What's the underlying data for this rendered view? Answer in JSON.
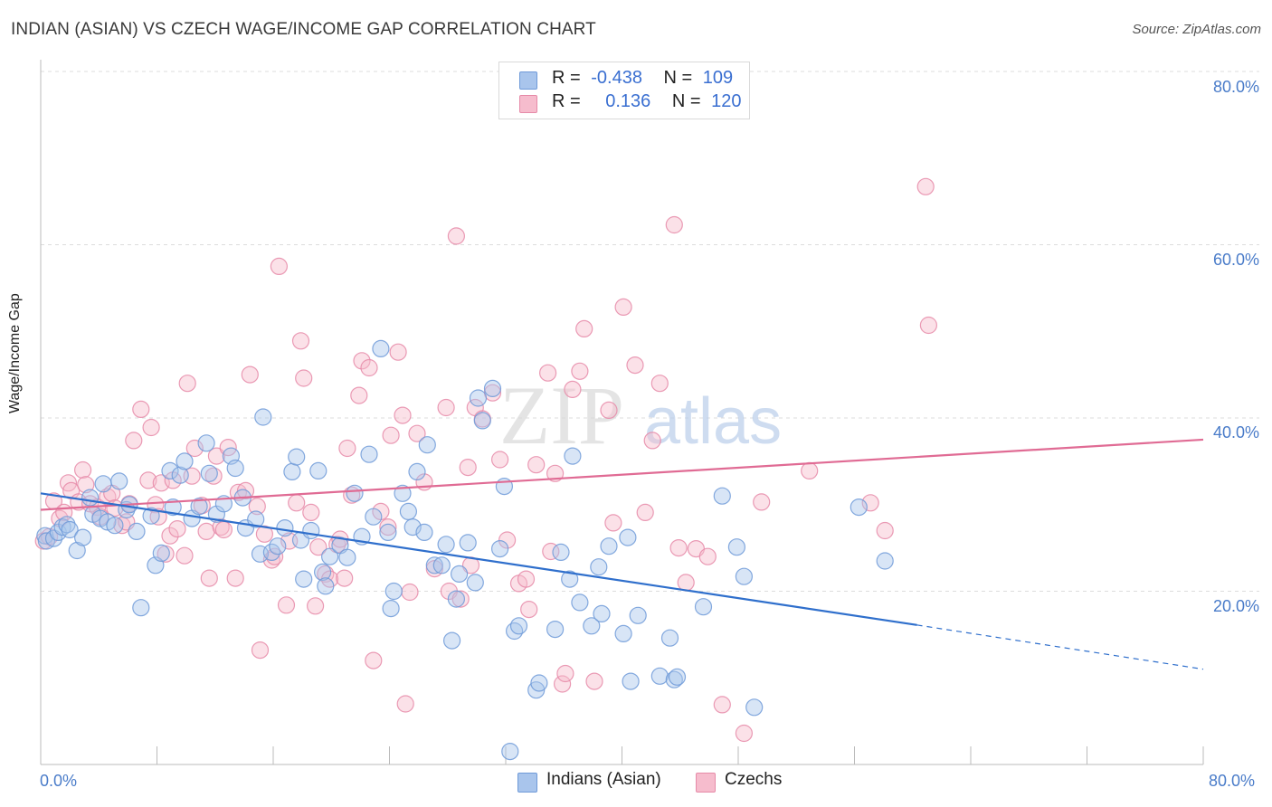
{
  "title": "INDIAN (ASIAN) VS CZECH WAGE/INCOME GAP CORRELATION CHART",
  "source": "Source: ZipAtlas.com",
  "watermark": {
    "zip": "ZIP",
    "atlas": "atlas"
  },
  "legend_top": {
    "rows": [
      {
        "r_label": "R =",
        "r_value": "-0.438",
        "n_label": "N =",
        "n_value": "109"
      },
      {
        "r_label": "R =",
        "r_value": "0.136",
        "n_label": "N =",
        "n_value": "120"
      }
    ]
  },
  "legend_bottom": {
    "items": [
      "Indians (Asian)",
      "Czechs"
    ]
  },
  "colors": {
    "blue_fill": "#a9c5ec",
    "blue_stroke": "#6f9ad8",
    "blue_line": "#2f6fcc",
    "pink_fill": "#f6bccd",
    "pink_stroke": "#e68aa8",
    "pink_line": "#e06b94",
    "tick_text": "#4a7cc9",
    "grid": "#dddddd"
  },
  "chart_data": {
    "type": "scatter",
    "title": "INDIAN (ASIAN) VS CZECH WAGE/INCOME GAP CORRELATION CHART",
    "xlabel": "",
    "ylabel": "Wage/Income Gap",
    "xlim": [
      0,
      80
    ],
    "ylim": [
      0,
      80
    ],
    "x_tick_labels": [
      "0.0%",
      "80.0%"
    ],
    "y_tick_labels": [
      "20.0%",
      "40.0%",
      "60.0%",
      "80.0%"
    ],
    "y_ticks": [
      20,
      40,
      60,
      80
    ],
    "grid": true,
    "legend_placement": "top-center",
    "series": [
      {
        "name": "Indians (Asian)",
        "r": -0.438,
        "n": 109,
        "trend": {
          "x": [
            0,
            60.3
          ],
          "y": [
            31.3,
            16.1
          ],
          "dashed_to": [
            80,
            11.0
          ]
        },
        "points": [
          [
            0.3,
            26.4
          ],
          [
            0.4,
            25.8
          ],
          [
            0.9,
            26.1
          ],
          [
            1.2,
            26.8
          ],
          [
            1.5,
            27.4
          ],
          [
            1.8,
            27.7
          ],
          [
            2.0,
            27.1
          ],
          [
            2.5,
            24.7
          ],
          [
            2.9,
            26.2
          ],
          [
            3.4,
            30.8
          ],
          [
            3.6,
            28.9
          ],
          [
            4.1,
            28.4
          ],
          [
            4.3,
            32.4
          ],
          [
            4.6,
            28.0
          ],
          [
            5.1,
            27.6
          ],
          [
            5.4,
            32.7
          ],
          [
            5.9,
            29.4
          ],
          [
            6.1,
            30.0
          ],
          [
            6.6,
            26.9
          ],
          [
            6.9,
            18.1
          ],
          [
            7.6,
            28.7
          ],
          [
            7.9,
            23.0
          ],
          [
            8.3,
            24.4
          ],
          [
            8.9,
            33.9
          ],
          [
            9.1,
            29.7
          ],
          [
            9.6,
            33.4
          ],
          [
            9.9,
            35.0
          ],
          [
            10.4,
            28.4
          ],
          [
            10.9,
            29.8
          ],
          [
            11.4,
            37.1
          ],
          [
            11.6,
            33.6
          ],
          [
            12.1,
            28.9
          ],
          [
            12.6,
            30.1
          ],
          [
            13.1,
            35.6
          ],
          [
            13.4,
            34.2
          ],
          [
            13.9,
            30.8
          ],
          [
            14.1,
            27.3
          ],
          [
            14.8,
            28.3
          ],
          [
            15.1,
            24.3
          ],
          [
            15.3,
            40.1
          ],
          [
            15.9,
            24.5
          ],
          [
            16.3,
            25.2
          ],
          [
            16.8,
            27.3
          ],
          [
            17.3,
            33.8
          ],
          [
            17.6,
            35.5
          ],
          [
            17.9,
            25.9
          ],
          [
            18.1,
            21.4
          ],
          [
            18.6,
            27.0
          ],
          [
            19.1,
            33.9
          ],
          [
            19.4,
            22.2
          ],
          [
            19.6,
            20.6
          ],
          [
            19.9,
            24.0
          ],
          [
            20.6,
            25.3
          ],
          [
            21.1,
            23.9
          ],
          [
            21.6,
            31.3
          ],
          [
            22.1,
            26.3
          ],
          [
            22.6,
            35.8
          ],
          [
            22.9,
            28.6
          ],
          [
            23.4,
            48.0
          ],
          [
            23.9,
            26.8
          ],
          [
            24.3,
            20.0
          ],
          [
            24.1,
            18.0
          ],
          [
            24.9,
            31.3
          ],
          [
            25.3,
            29.2
          ],
          [
            25.6,
            27.4
          ],
          [
            25.9,
            33.8
          ],
          [
            26.4,
            26.8
          ],
          [
            26.6,
            36.9
          ],
          [
            27.1,
            23.0
          ],
          [
            27.6,
            23.0
          ],
          [
            27.9,
            25.4
          ],
          [
            28.3,
            14.3
          ],
          [
            28.6,
            19.1
          ],
          [
            28.8,
            22.0
          ],
          [
            29.4,
            25.6
          ],
          [
            29.9,
            21.0
          ],
          [
            30.1,
            42.3
          ],
          [
            30.4,
            39.7
          ],
          [
            31.1,
            43.4
          ],
          [
            31.6,
            24.9
          ],
          [
            31.9,
            32.1
          ],
          [
            32.3,
            1.5
          ],
          [
            32.6,
            15.4
          ],
          [
            32.9,
            16.0
          ],
          [
            34.1,
            8.6
          ],
          [
            34.3,
            9.4
          ],
          [
            35.4,
            15.6
          ],
          [
            35.8,
            24.5
          ],
          [
            36.4,
            21.4
          ],
          [
            36.6,
            35.6
          ],
          [
            37.1,
            18.7
          ],
          [
            37.9,
            16.0
          ],
          [
            38.4,
            22.8
          ],
          [
            38.6,
            17.4
          ],
          [
            39.1,
            25.2
          ],
          [
            40.1,
            15.1
          ],
          [
            40.4,
            26.2
          ],
          [
            40.6,
            9.6
          ],
          [
            41.1,
            17.2
          ],
          [
            42.6,
            10.2
          ],
          [
            43.3,
            14.6
          ],
          [
            43.6,
            9.8
          ],
          [
            43.8,
            10.1
          ],
          [
            45.6,
            18.2
          ],
          [
            46.9,
            31.0
          ],
          [
            47.9,
            25.1
          ],
          [
            48.4,
            21.7
          ],
          [
            49.1,
            6.6
          ],
          [
            56.3,
            29.7
          ],
          [
            58.1,
            23.5
          ]
        ]
      },
      {
        "name": "Czechs",
        "r": 0.136,
        "n": 120,
        "trend": {
          "x": [
            0,
            80
          ],
          "y": [
            29.4,
            37.5
          ]
        },
        "points": [
          [
            0.2,
            25.8
          ],
          [
            0.6,
            26.3
          ],
          [
            0.9,
            30.4
          ],
          [
            1.3,
            28.4
          ],
          [
            1.6,
            29.1
          ],
          [
            1.9,
            32.5
          ],
          [
            2.1,
            31.6
          ],
          [
            2.6,
            30.3
          ],
          [
            2.9,
            34.0
          ],
          [
            3.1,
            32.3
          ],
          [
            3.4,
            30.1
          ],
          [
            3.9,
            29.7
          ],
          [
            4.1,
            28.6
          ],
          [
            4.6,
            30.9
          ],
          [
            4.9,
            31.3
          ],
          [
            5.1,
            29.6
          ],
          [
            5.6,
            27.6
          ],
          [
            5.9,
            28.0
          ],
          [
            6.1,
            30.1
          ],
          [
            6.4,
            37.4
          ],
          [
            6.9,
            41.0
          ],
          [
            7.4,
            32.8
          ],
          [
            7.6,
            38.9
          ],
          [
            7.9,
            30.0
          ],
          [
            8.1,
            28.6
          ],
          [
            8.3,
            32.5
          ],
          [
            8.6,
            24.3
          ],
          [
            8.9,
            26.4
          ],
          [
            9.1,
            32.8
          ],
          [
            9.4,
            27.2
          ],
          [
            9.9,
            24.1
          ],
          [
            10.1,
            44.0
          ],
          [
            10.4,
            33.3
          ],
          [
            10.6,
            36.5
          ],
          [
            11.1,
            29.9
          ],
          [
            11.4,
            26.9
          ],
          [
            11.6,
            21.5
          ],
          [
            11.9,
            33.3
          ],
          [
            12.1,
            35.6
          ],
          [
            12.4,
            27.4
          ],
          [
            12.6,
            27.1
          ],
          [
            12.9,
            36.6
          ],
          [
            13.4,
            21.5
          ],
          [
            13.6,
            31.4
          ],
          [
            14.1,
            31.6
          ],
          [
            14.4,
            45.0
          ],
          [
            14.9,
            29.8
          ],
          [
            15.1,
            13.2
          ],
          [
            15.4,
            26.6
          ],
          [
            15.9,
            23.6
          ],
          [
            16.1,
            24.0
          ],
          [
            16.4,
            57.5
          ],
          [
            16.9,
            18.4
          ],
          [
            17.1,
            25.8
          ],
          [
            17.6,
            30.2
          ],
          [
            17.9,
            48.9
          ],
          [
            18.1,
            44.6
          ],
          [
            18.6,
            29.1
          ],
          [
            18.9,
            18.3
          ],
          [
            19.1,
            25.1
          ],
          [
            19.6,
            22.0
          ],
          [
            19.9,
            21.4
          ],
          [
            20.4,
            25.4
          ],
          [
            20.6,
            26.0
          ],
          [
            20.9,
            21.5
          ],
          [
            21.1,
            36.5
          ],
          [
            21.4,
            31.1
          ],
          [
            21.9,
            42.6
          ],
          [
            22.1,
            46.6
          ],
          [
            22.6,
            45.8
          ],
          [
            22.9,
            12.0
          ],
          [
            23.4,
            29.2
          ],
          [
            23.9,
            27.4
          ],
          [
            24.1,
            38.0
          ],
          [
            24.6,
            47.6
          ],
          [
            24.9,
            40.3
          ],
          [
            25.1,
            7.0
          ],
          [
            25.4,
            19.9
          ],
          [
            25.9,
            38.2
          ],
          [
            26.4,
            32.6
          ],
          [
            27.1,
            22.6
          ],
          [
            27.9,
            41.2
          ],
          [
            28.1,
            20.0
          ],
          [
            28.6,
            61.0
          ],
          [
            28.9,
            19.1
          ],
          [
            29.4,
            34.3
          ],
          [
            29.6,
            23.0
          ],
          [
            29.9,
            41.2
          ],
          [
            30.4,
            39.9
          ],
          [
            31.1,
            42.9
          ],
          [
            31.6,
            35.2
          ],
          [
            32.1,
            25.9
          ],
          [
            32.9,
            20.9
          ],
          [
            33.4,
            21.4
          ],
          [
            33.6,
            17.9
          ],
          [
            34.1,
            34.6
          ],
          [
            34.9,
            45.2
          ],
          [
            35.1,
            24.6
          ],
          [
            35.4,
            33.6
          ],
          [
            35.9,
            9.3
          ],
          [
            36.1,
            10.5
          ],
          [
            36.6,
            43.3
          ],
          [
            37.1,
            45.4
          ],
          [
            37.4,
            50.3
          ],
          [
            38.1,
            9.6
          ],
          [
            39.1,
            40.9
          ],
          [
            39.4,
            27.9
          ],
          [
            40.1,
            52.8
          ],
          [
            40.9,
            46.1
          ],
          [
            41.6,
            29.1
          ],
          [
            42.1,
            37.4
          ],
          [
            42.6,
            44.0
          ],
          [
            43.6,
            62.3
          ],
          [
            43.9,
            25.0
          ],
          [
            44.4,
            21.0
          ],
          [
            45.1,
            24.9
          ],
          [
            45.9,
            24.0
          ],
          [
            46.9,
            6.9
          ],
          [
            48.4,
            3.6
          ],
          [
            49.6,
            30.3
          ],
          [
            52.9,
            33.9
          ],
          [
            57.1,
            30.2
          ],
          [
            58.1,
            27.0
          ],
          [
            60.9,
            66.7
          ],
          [
            61.1,
            50.7
          ]
        ]
      }
    ]
  }
}
